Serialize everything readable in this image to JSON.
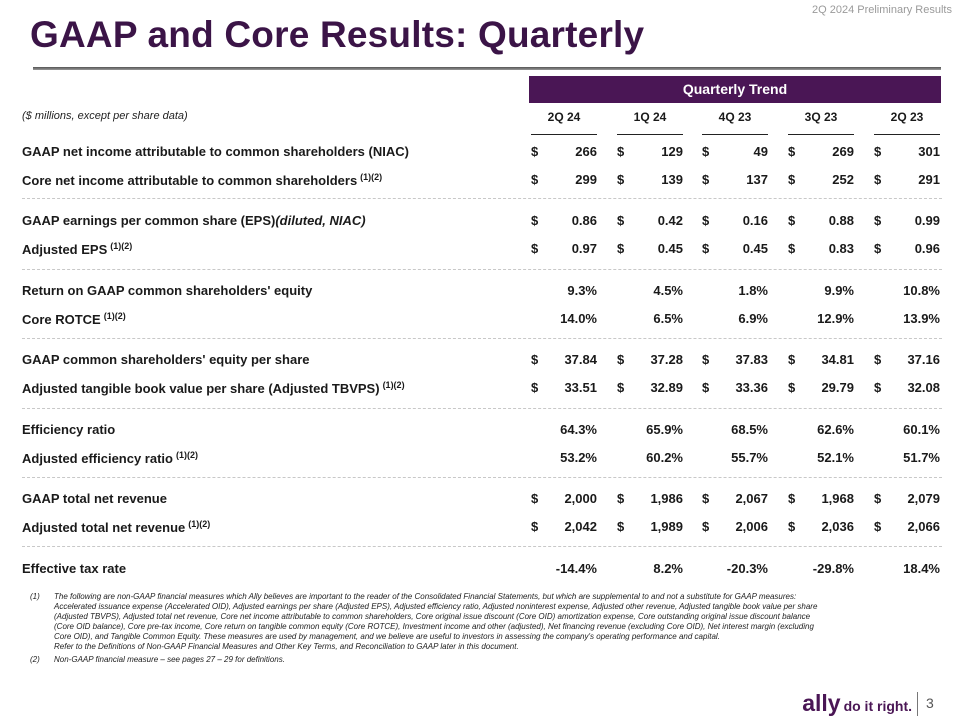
{
  "header": {
    "top_label": "2Q 2024 Preliminary Results",
    "title": "GAAP and Core Results: Quarterly"
  },
  "table": {
    "group_header": "Quarterly Trend",
    "units_note": "($ millions, except per share data)",
    "columns": [
      "2Q 24",
      "1Q 24",
      "4Q 23",
      "3Q 23",
      "2Q 23"
    ],
    "rows": [
      {
        "label": "GAAP net income attributable to common shareholders (NIAC)",
        "label_italic": "",
        "sup": "",
        "values": [
          "266",
          "129",
          "49",
          "269",
          "301"
        ],
        "dollar": true
      },
      {
        "label": "Core net income attributable to common shareholders",
        "label_italic": "",
        "sup": "(1)(2)",
        "values": [
          "299",
          "139",
          "137",
          "252",
          "291"
        ],
        "dollar": true
      },
      {
        "label": "GAAP earnings per common share (EPS)",
        "label_italic": "(diluted, NIAC)",
        "sup": "",
        "values": [
          "0.86",
          "0.42",
          "0.16",
          "0.88",
          "0.99"
        ],
        "dollar": true
      },
      {
        "label": "Adjusted EPS",
        "label_italic": "",
        "sup": "(1)(2)",
        "values": [
          "0.97",
          "0.45",
          "0.45",
          "0.83",
          "0.96"
        ],
        "dollar": true
      },
      {
        "label": "Return on GAAP common shareholders' equity",
        "label_italic": "",
        "sup": "",
        "values": [
          "9.3%",
          "4.5%",
          "1.8%",
          "9.9%",
          "10.8%"
        ],
        "dollar": false
      },
      {
        "label": "Core ROTCE",
        "label_italic": "",
        "sup": "(1)(2)",
        "values": [
          "14.0%",
          "6.5%",
          "6.9%",
          "12.9%",
          "13.9%"
        ],
        "dollar": false
      },
      {
        "label": "GAAP common shareholders' equity per share",
        "label_italic": "",
        "sup": "",
        "values": [
          "37.84",
          "37.28",
          "37.83",
          "34.81",
          "37.16"
        ],
        "dollar": true
      },
      {
        "label": "Adjusted tangible book value per share (Adjusted TBVPS)",
        "label_italic": "",
        "sup": "(1)(2)",
        "values": [
          "33.51",
          "32.89",
          "33.36",
          "29.79",
          "32.08"
        ],
        "dollar": true
      },
      {
        "label": "Efficiency ratio",
        "label_italic": "",
        "sup": "",
        "values": [
          "64.3%",
          "65.9%",
          "68.5%",
          "62.6%",
          "60.1%"
        ],
        "dollar": false
      },
      {
        "label": "Adjusted efficiency ratio",
        "label_italic": "",
        "sup": "(1)(2)",
        "values": [
          "53.2%",
          "60.2%",
          "55.7%",
          "52.1%",
          "51.7%"
        ],
        "dollar": false
      },
      {
        "label": "GAAP total net revenue",
        "label_italic": "",
        "sup": "",
        "values": [
          "2,000",
          "1,986",
          "2,067",
          "1,968",
          "2,079"
        ],
        "dollar": true
      },
      {
        "label": "Adjusted total net revenue",
        "label_italic": "",
        "sup": "(1)(2)",
        "values": [
          "2,042",
          "1,989",
          "2,006",
          "2,036",
          "2,066"
        ],
        "dollar": true
      },
      {
        "label": "Effective tax rate",
        "label_italic": "",
        "sup": "",
        "values": [
          "-14.4%",
          "8.2%",
          "-20.3%",
          "-29.8%",
          "18.4%"
        ],
        "dollar": false
      }
    ]
  },
  "footnotes": [
    {
      "mark": "(1)",
      "text": "The following are non-GAAP financial measures which Ally believes are important to the reader of the Consolidated Financial Statements, but which are supplemental to and not a substitute for GAAP measures: Accelerated issuance expense (Accelerated OID), Adjusted earnings per share (Adjusted EPS), Adjusted efficiency ratio, Adjusted noninterest expense, Adjusted other revenue, Adjusted tangible book value per share (Adjusted TBVPS), Adjusted total net revenue, Core net income attributable to common shareholders, Core original issue discount (Core OID) amortization expense, Core outstanding original issue discount balance (Core OID balance), Core pre-tax income, Core return on tangible common equity (Core ROTCE), Investment income and other (adjusted), Net financing revenue (excluding Core OID), Net interest margin (excluding Core OID), and Tangible Common Equity. These measures are used by management, and we believe are useful to investors in assessing the company's operating performance and capital.",
      "text2": "Refer to the Definitions of Non-GAAP Financial Measures and Other Key Terms, and Reconciliation to GAAP later in this document."
    },
    {
      "mark": "(2)",
      "text": "Non-GAAP financial measure – see pages 27 – 29 for definitions.",
      "text2": ""
    }
  ],
  "footer": {
    "logo_text": "ally",
    "tagline": "do it right.",
    "page_number": "3"
  },
  "colors": {
    "brand": "#4a1655",
    "title": "#3b1447"
  }
}
